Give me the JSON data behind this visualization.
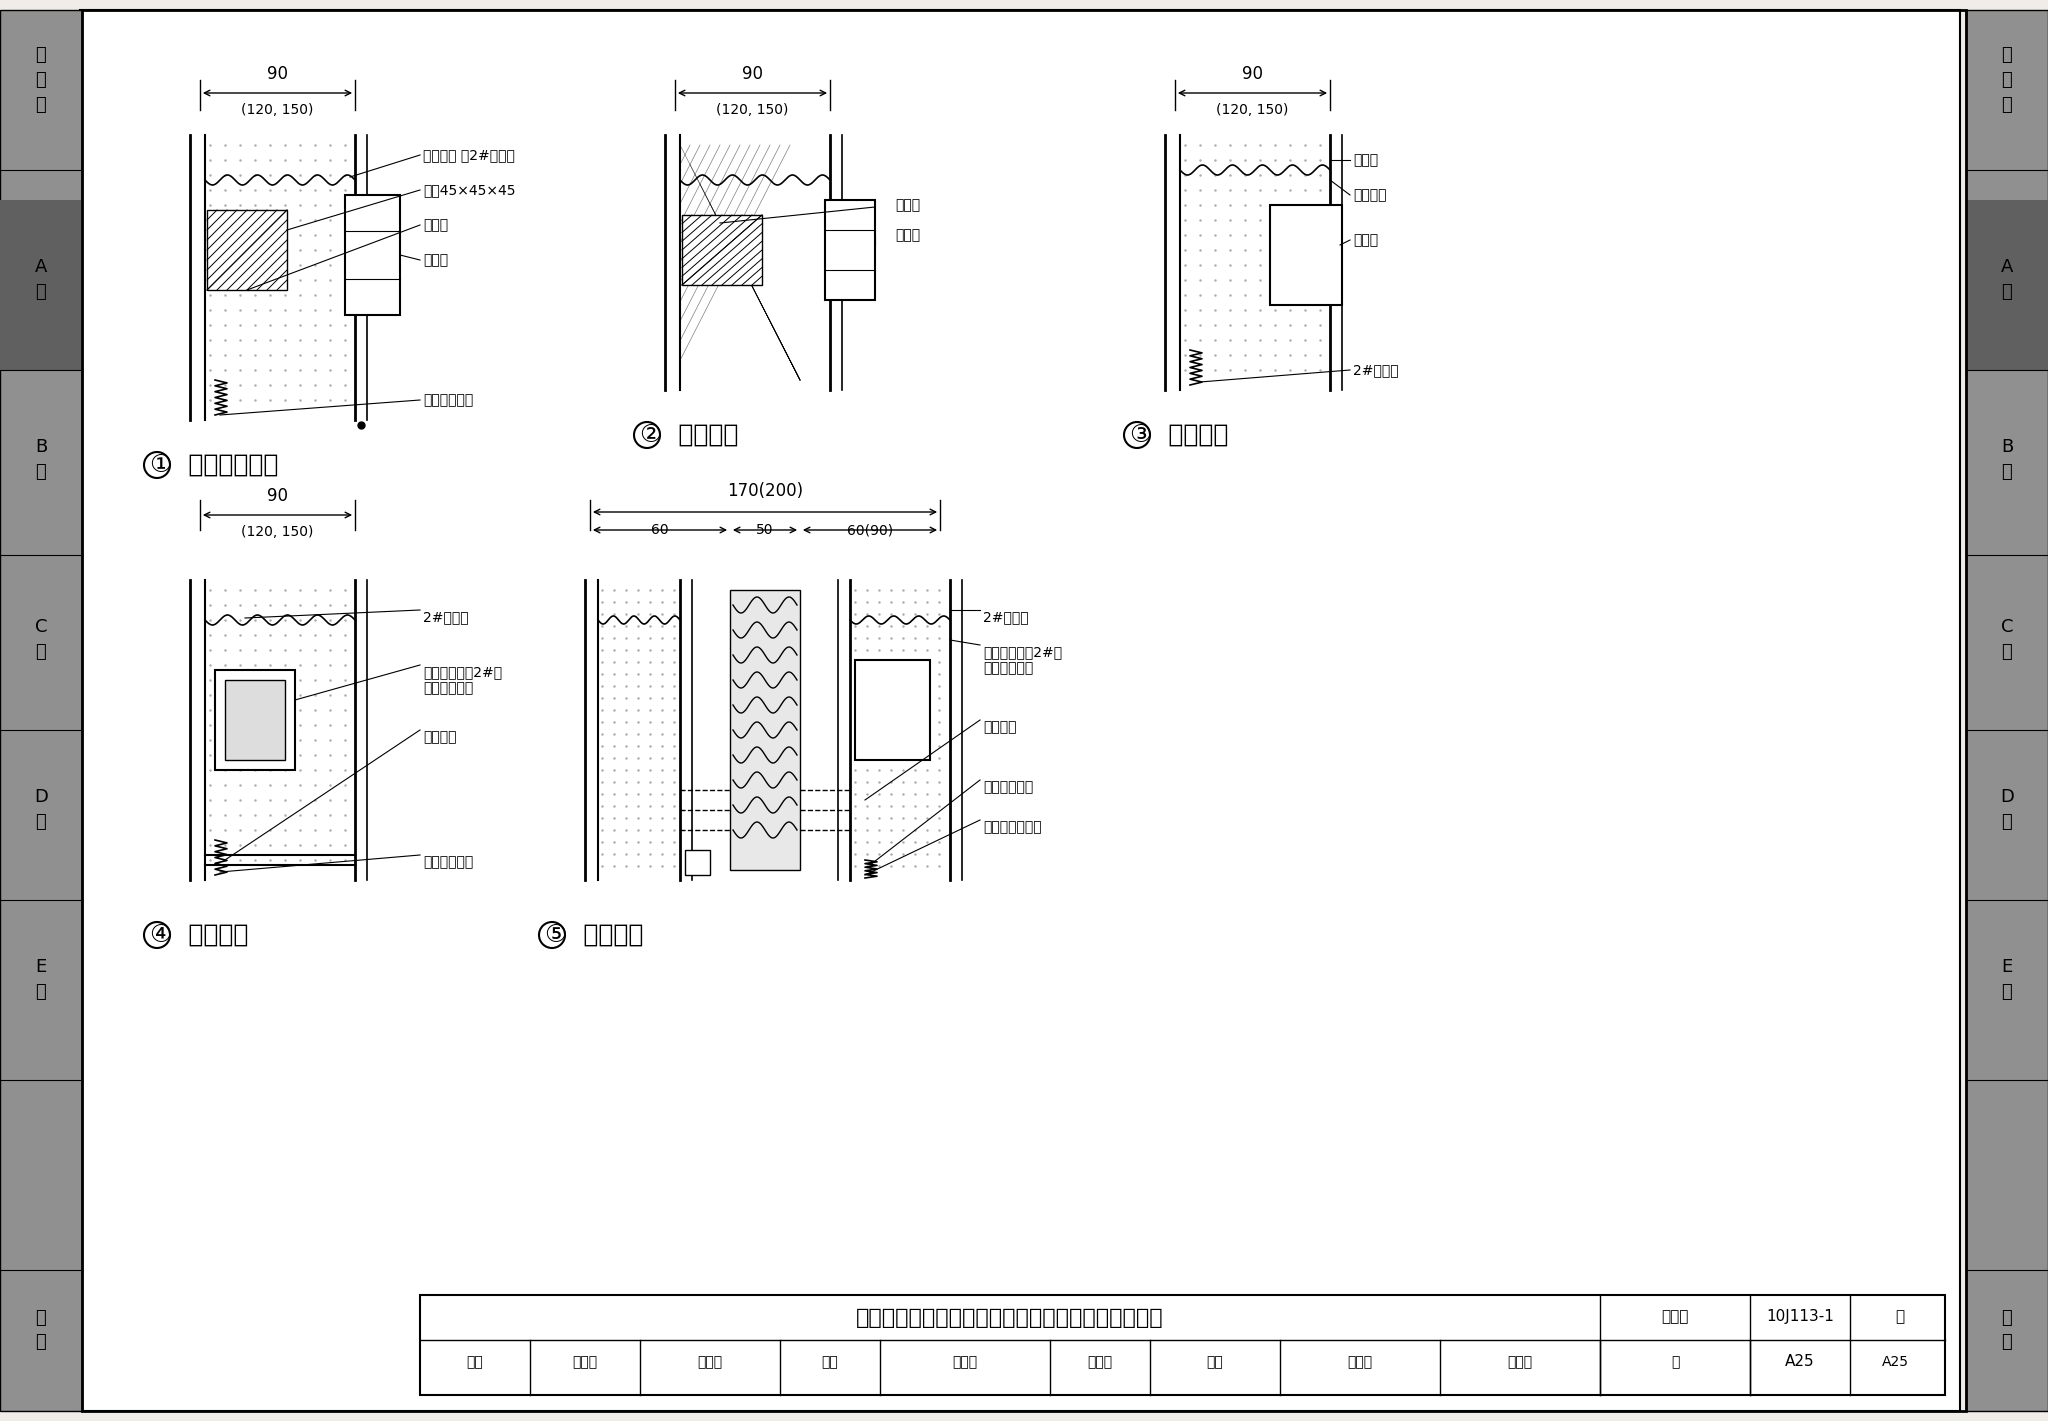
{
  "title": "轻混凝土、水泥、石膏条板电气开关、插座安装节点",
  "fig_number": "10J113-1",
  "page": "A25",
  "bg_color": "#f5f5f0",
  "sidebar_color": "#808080",
  "sidebar_labels_left": [
    "总\n说\n明",
    "A\n型",
    "B\n型",
    "C\n型",
    "D\n型",
    "E\n型",
    "附\n录"
  ],
  "sidebar_labels_right": [
    "总\n说\n明",
    "A\n型",
    "B\n型",
    "C\n型",
    "D\n型",
    "E\n型",
    "附\n录"
  ],
  "diagram1_title": "① 明线拉线开关",
  "diagram2_title": "② 明线插座",
  "diagram3_title": "③ 暗线开关",
  "diagram4_title": "④ 暗线插座",
  "diagram5_title": "⑤ 暗线插座",
  "footer_row1": [
    "审核",
    "高宝林",
    "高宝林",
    "校对",
    "张兰英",
    "佑玖玖",
    "设计",
    "杨小东",
    "杨小东",
    "页",
    "A25"
  ],
  "table_title": "轻混凝土、水泥、石膏条板电气开关、插座安装节点",
  "table_fig_label": "图集号",
  "table_fig_number": "10J113-1",
  "table_page_label": "页",
  "table_page_number": "A25"
}
